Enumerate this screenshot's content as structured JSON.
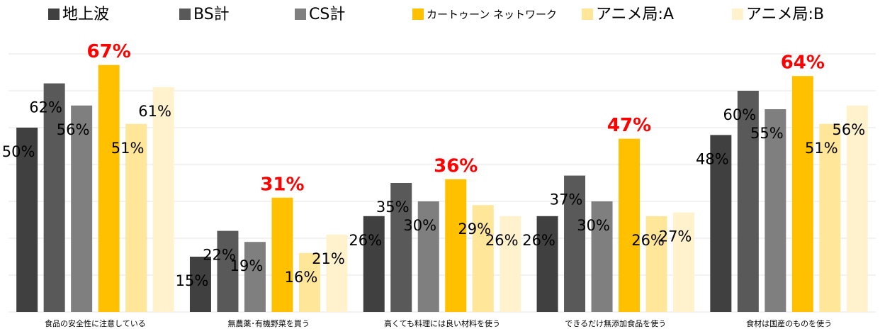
{
  "chart_data": {
    "type": "bar",
    "categories": [
      "食品の安全性に注意している",
      "無農薬･有機野菜を買う",
      "高くても料理には良い材料を使う",
      "できるだけ無添加食品を使う",
      "食材は国産のものを使う"
    ],
    "series": [
      {
        "name": "地上波",
        "color": "#404040",
        "values": [
          50,
          15,
          26,
          26,
          48
        ],
        "value_labels": [
          "50%",
          "15%",
          "26%",
          "26%",
          "48%"
        ]
      },
      {
        "name": "BS計",
        "color": "#595959",
        "values": [
          62,
          22,
          35,
          37,
          60
        ],
        "value_labels": [
          "62%",
          "22%",
          "35%",
          "37%",
          "60%"
        ]
      },
      {
        "name": "CS計",
        "color": "#7f7f7f",
        "values": [
          56,
          19,
          30,
          30,
          55
        ],
        "value_labels": [
          "56%",
          "19%",
          "30%",
          "30%",
          "55%"
        ]
      },
      {
        "name": "カートゥーン ネットワーク",
        "color": "#ffc000",
        "values": [
          67,
          31,
          36,
          47,
          64
        ],
        "value_labels": [
          "67%",
          "31%",
          "36%",
          "47%",
          "64%"
        ]
      },
      {
        "name": "アニメ局:A",
        "color": "#ffe699",
        "values": [
          51,
          16,
          29,
          26,
          51
        ],
        "value_labels": [
          "51%",
          "16%",
          "29%",
          "26%",
          "51%"
        ]
      },
      {
        "name": "アニメ局:B",
        "color": "#fff2cc",
        "values": [
          61,
          21,
          26,
          27,
          56
        ],
        "value_labels": [
          "61%",
          "21%",
          "26%",
          "27%",
          "56%"
        ]
      }
    ],
    "highlight_color": "#ff0000",
    "ylim": [
      0,
      70
    ],
    "yticks": [
      0,
      10,
      20,
      30,
      40,
      50,
      60,
      70
    ],
    "grid": true
  }
}
